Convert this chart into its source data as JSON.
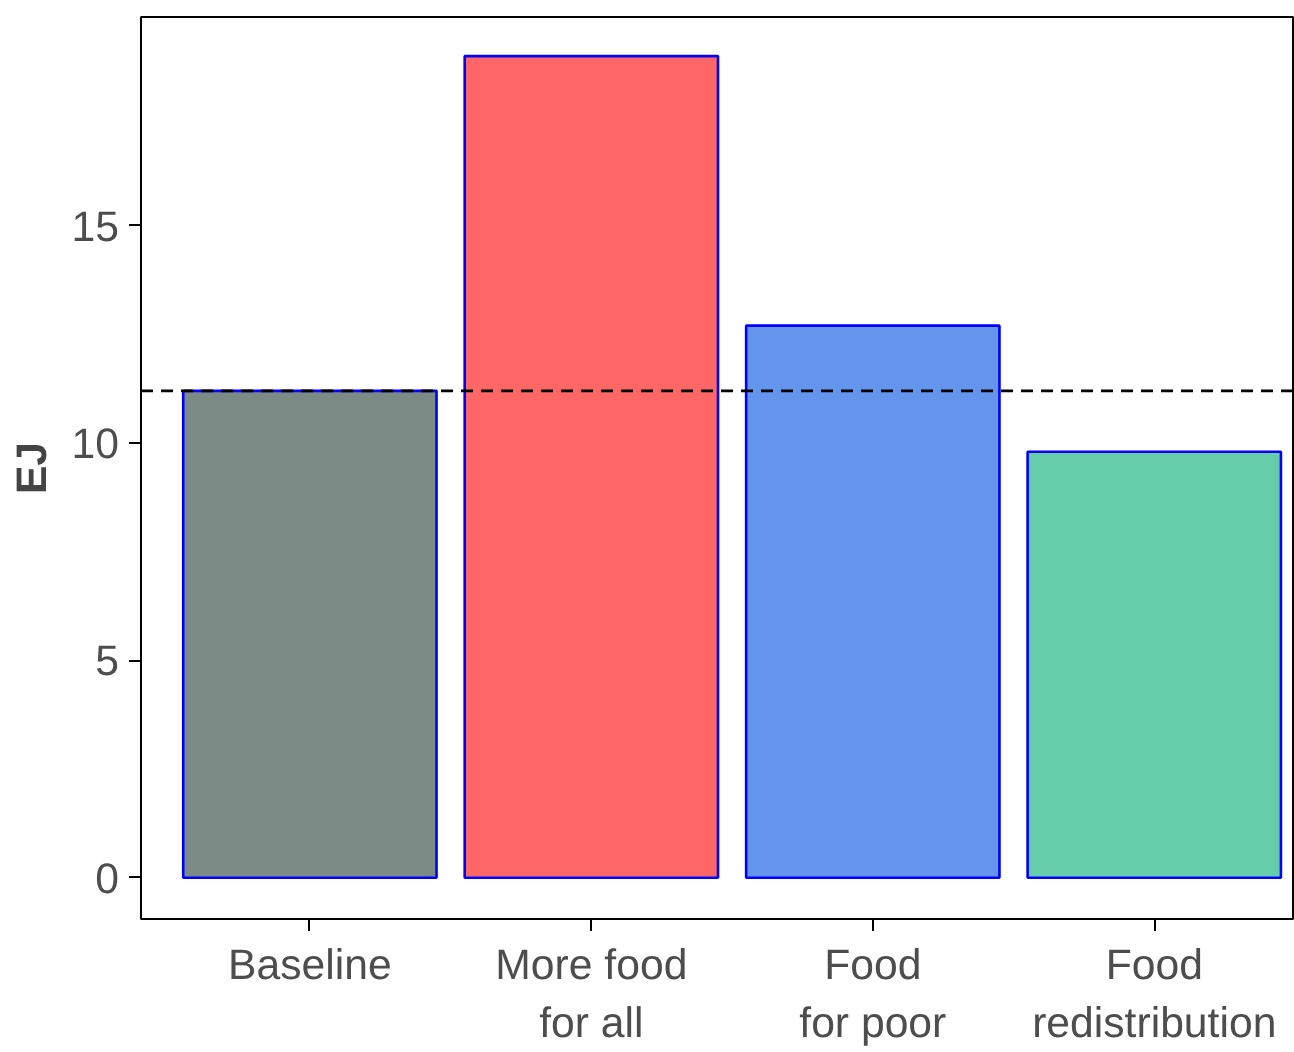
{
  "chart_data": {
    "type": "bar",
    "ylabel": "EJ",
    "categories": [
      "Baseline",
      "More food\nfor all",
      "Food\nfor poor",
      "Food\nredistribution"
    ],
    "values": [
      11.2,
      18.9,
      12.7,
      9.8
    ],
    "colors": [
      "#7a8a85",
      "#ff6666",
      "#6495ed",
      "#66cdaa"
    ],
    "ylim": [
      -0.95,
      19.8
    ],
    "yticks": [
      0,
      5,
      10,
      15
    ],
    "grid": false,
    "ref_lines": [
      {
        "axis": "y",
        "value": 11.2,
        "label": null,
        "color": "#000000",
        "line_style": "dashed"
      }
    ]
  }
}
